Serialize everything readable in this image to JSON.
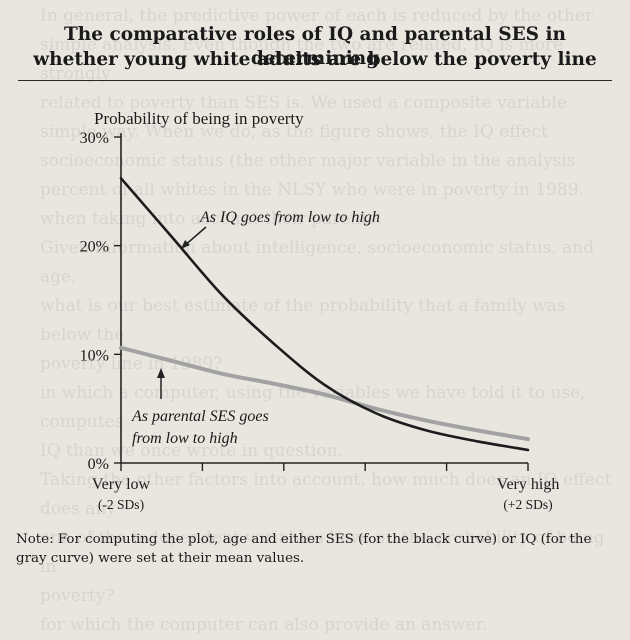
{
  "figure": {
    "title_line1": "The comparative roles of IQ and parental SES in determining",
    "title_line2": "whether young white adults are below the poverty line",
    "note": "Note: For computing the plot, age and either SES (for the black curve) or IQ (for the gray curve) were set at their mean values."
  },
  "bleed_text": "In general, the predictive power of each is reduced by the other\nsimple analysis. Even though the two are related, IQ is more strongly\nrelated to poverty than SES is. We used a composite variable\nsimple way. When we do, as the figure shows, the IQ effect\nsocioeconomic status (the other major variable in the analysis\npercent of all whites in the NLSY who were in poverty in 1989.\nwhen taking into account their parents.\nGiven information about intelligence, socioeconomic status, and age,\nwhat is our best estimate of the probability that a family was below the\npoverty line in 1989?\nin which a computer, using the variables we have told it to use, computes\nIQ than we once wrote in question.\nTaking the other factors into account, how much does an IQ effect does any\none of the independent variables have on the probability of being in\npoverty?\nfor which the computer can also provide an answer.",
  "colors": {
    "iq_curve": "#1c1c1c",
    "ses_curve": "#a2a2a2",
    "axis": "#222222",
    "background": "#e9e6e0"
  },
  "chart_data": {
    "type": "line",
    "title": "The comparative roles of IQ and parental SES in determining whether young white adults are below the poverty line",
    "ylabel": "Probability of being in poverty",
    "xlabel": "",
    "xlim": [
      -2,
      2
    ],
    "ylim": [
      0,
      30
    ],
    "x_ticks": [
      -2,
      -1.2,
      -0.4,
      0.4,
      1.2,
      2
    ],
    "x_tick_labels": [
      {
        "x": -2,
        "line1": "Very low",
        "line2": "(-2 SDs)"
      },
      {
        "x": 2,
        "line1": "Very high",
        "line2": "(+2 SDs)"
      }
    ],
    "y_ticks": [
      0,
      10,
      20,
      30
    ],
    "y_tick_labels": [
      "0%",
      "10%",
      "20%",
      "30%"
    ],
    "grid": false,
    "series": [
      {
        "name": "IQ",
        "color": "#1c1c1c",
        "x": [
          -2,
          -1.5,
          -1,
          -0.5,
          0,
          0.5,
          1,
          1.5,
          2
        ],
        "y": [
          26.2,
          20.8,
          15.4,
          11.0,
          7.2,
          4.6,
          3.0,
          2.0,
          1.2
        ]
      },
      {
        "name": "Parental SES",
        "color": "#a2a2a2",
        "x": [
          -2,
          -1.5,
          -1,
          -0.5,
          0,
          0.5,
          1,
          1.5,
          2
        ],
        "y": [
          10.6,
          9.4,
          8.2,
          7.3,
          6.3,
          5.0,
          3.9,
          3.0,
          2.2
        ]
      }
    ],
    "annotations": [
      {
        "text": "As IQ goes from low to high",
        "series": "IQ"
      },
      {
        "text_line1": "As parental SES goes",
        "text_line2": "from low to high",
        "series": "Parental SES"
      }
    ]
  }
}
